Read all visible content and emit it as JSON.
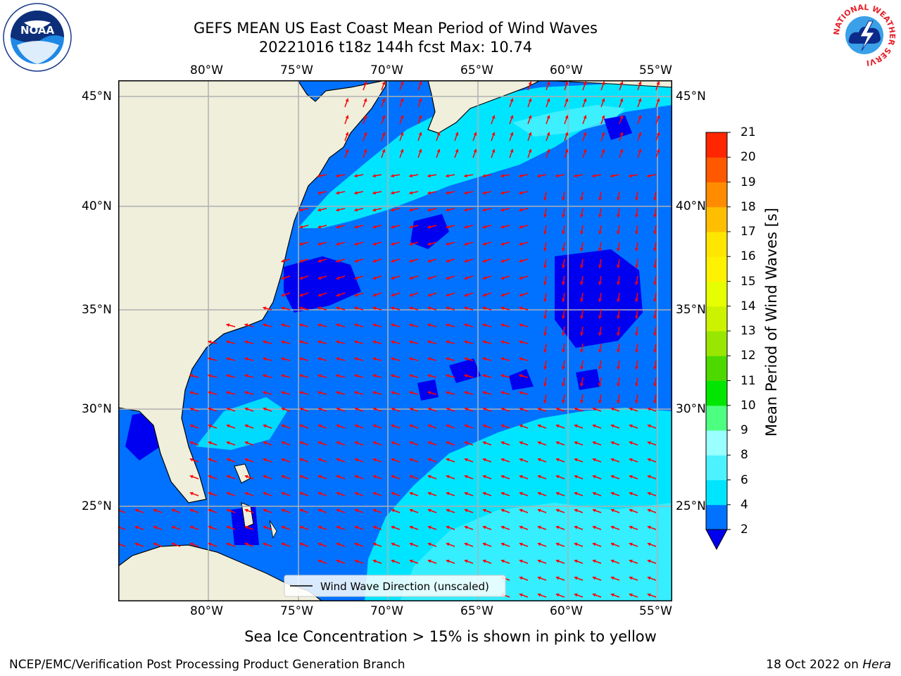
{
  "header": {
    "title_line1": "GEFS MEAN US East Coast Mean Period of Wind Waves",
    "title_line2": "20221016 t18z 144h fcst   Max: 10.74"
  },
  "logos": {
    "noaa_text": "NOAA",
    "nws_text": "NATIONAL WEATHER SERVICE"
  },
  "map": {
    "lon_labels": [
      "80°W",
      "75°W",
      "70°W",
      "65°W",
      "60°W",
      "55°W"
    ],
    "lat_labels": [
      "45°N",
      "40°N",
      "35°N",
      "30°N",
      "25°N"
    ],
    "legend_label": "Wind Wave Direction (unscaled)",
    "arrow_color": "#ff0000",
    "land_color": "#efefdc"
  },
  "colorbar": {
    "label": "Mean Period of Wind Waves [s]",
    "ticks": [
      "2",
      "4",
      "6",
      "8",
      "9",
      "10",
      "11",
      "12",
      "13",
      "14",
      "15",
      "16",
      "17",
      "18",
      "19",
      "20",
      "21"
    ],
    "colors": [
      "#0072ff",
      "#00e5ff",
      "#4cf2ff",
      "#99ffff",
      "#4dff80",
      "#00e600",
      "#4dd900",
      "#99e600",
      "#ccf200",
      "#e6ff00",
      "#fff200",
      "#ffe600",
      "#ffbf00",
      "#ff8c00",
      "#ff5900",
      "#ff2600",
      "#ff0000"
    ],
    "under_color": "#0000f0"
  },
  "footer": {
    "sea_ice_note": "Sea Ice Concentration > 15% is shown in pink to yellow",
    "branch": "NCEP/EMC/Verification Post Processing Product Generation Branch",
    "date_prefix": "18 Oct 2022 on ",
    "date_machine": "Hera"
  }
}
